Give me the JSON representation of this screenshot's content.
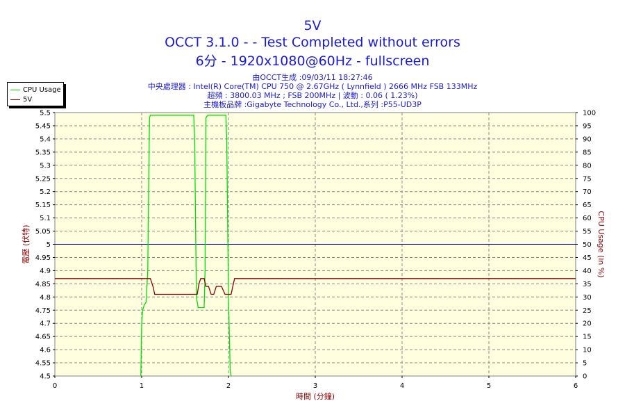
{
  "title_lines": [
    "5V",
    "OCCT 3.1.0 -  - Test Completed without errors",
    "6分 - 1920x1080@60Hz - fullscreen"
  ],
  "info_lines": [
    "由OCCT生成 :09/03/11 18:27:46",
    "中央處理器 : Intel(R) Core(TM) CPU 750 @ 2.67GHz ( Lynnfield ) 2666 MHz FSB 133MHz",
    "超頻 : 3800.03 MHz ; FSB 200MHz | 波動 : 0.06 ( 1.23%)",
    "主機板品牌 :Gigabyte Technology Co., Ltd.,系列 :P55-UD3P"
  ],
  "legend": [
    {
      "label": "CPU Usage",
      "color": "#00e000"
    },
    {
      "label": "5V",
      "color": "#8b0000"
    }
  ],
  "chart_data": {
    "type": "line",
    "xlabel": "時間 (分鐘)",
    "ylabel_left": "電壓 (伏特)",
    "ylabel_right": "CPU Usage (in %)",
    "xlim": [
      0,
      6
    ],
    "ylim_left": [
      4.5,
      5.5
    ],
    "ylim_right": [
      0,
      100
    ],
    "x_ticks": [
      0,
      1,
      2,
      3,
      4,
      5,
      6
    ],
    "y_ticks_left": [
      4.5,
      4.55,
      4.6,
      4.65,
      4.7,
      4.75,
      4.8,
      4.85,
      4.9,
      4.95,
      5,
      5.05,
      5.1,
      5.15,
      5.2,
      5.25,
      5.3,
      5.35,
      5.4,
      5.45,
      5.5
    ],
    "y_ticks_right": [
      0,
      5,
      10,
      15,
      20,
      25,
      30,
      35,
      40,
      45,
      50,
      55,
      60,
      65,
      70,
      75,
      80,
      85,
      90,
      95,
      100
    ],
    "grid": true,
    "reference_line": {
      "axis": "left",
      "value": 5.0,
      "color": "#0000cc"
    },
    "series": [
      {
        "name": "CPU Usage",
        "axis": "right",
        "color": "#00e000",
        "x": [
          0.99,
          1.0,
          1.01,
          1.03,
          1.05,
          1.07,
          1.08,
          1.09,
          1.1,
          1.12,
          1.15,
          1.2,
          1.3,
          1.4,
          1.5,
          1.55,
          1.58,
          1.6,
          1.61,
          1.63,
          1.65,
          1.7,
          1.72,
          1.73,
          1.74,
          1.76,
          1.8,
          1.9,
          1.95,
          1.97,
          1.98,
          2.0,
          2.02,
          2.03
        ],
        "y": [
          0,
          20,
          25,
          27,
          28,
          40,
          70,
          98,
          99,
          99,
          99,
          99,
          99,
          99,
          99,
          99,
          99,
          99,
          90,
          30,
          26,
          26,
          26,
          40,
          98,
          99,
          99,
          99,
          99,
          99,
          90,
          30,
          2,
          0
        ]
      },
      {
        "name": "5V",
        "axis": "left",
        "color": "#8b0000",
        "x": [
          0,
          1.1,
          1.13,
          1.15,
          1.2,
          1.3,
          1.5,
          1.6,
          1.64,
          1.66,
          1.68,
          1.72,
          1.74,
          1.77,
          1.8,
          1.83,
          1.86,
          1.88,
          1.92,
          1.96,
          2.0,
          2.03,
          2.05,
          2.07,
          2.09,
          2.2,
          3,
          4,
          5,
          6
        ],
        "y": [
          4.87,
          4.87,
          4.84,
          4.81,
          4.81,
          4.81,
          4.81,
          4.81,
          4.81,
          4.85,
          4.87,
          4.87,
          4.84,
          4.84,
          4.81,
          4.81,
          4.84,
          4.84,
          4.84,
          4.81,
          4.81,
          4.81,
          4.84,
          4.87,
          4.87,
          4.87,
          4.87,
          4.87,
          4.87,
          4.87
        ]
      }
    ]
  }
}
